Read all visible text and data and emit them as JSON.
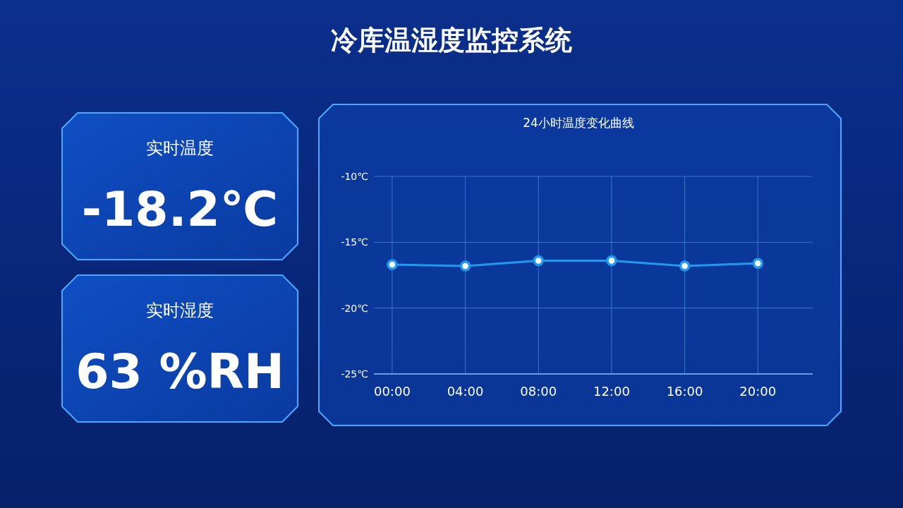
{
  "chart_data": [
    {
      "type": "other",
      "title": "冷库温湿度监控系统",
      "annotations": [
        "实时温度",
        "-18.2℃",
        "实时湿度",
        "63 %RH"
      ]
    },
    {
      "type": "line",
      "title": "24小时温度变化曲线",
      "categories": [
        "00:00",
        "04:00",
        "08:00",
        "12:00",
        "16:00",
        "20:00"
      ],
      "series": [
        {
          "color": "#1e9bf0",
          "values": [
            -16.7,
            -16.8,
            -16.4,
            -16.4,
            -16.8,
            -16.6
          ]
        }
      ],
      "ylim": [
        -25,
        -10
      ],
      "yticks": [
        {
          "value": -25,
          "label": "-25℃"
        },
        {
          "value": -20,
          "label": "-20℃"
        },
        {
          "value": -15,
          "label": "-15℃"
        },
        {
          "value": -10,
          "label": "-10℃"
        }
      ],
      "grid": true,
      "marker": "circle"
    }
  ]
}
